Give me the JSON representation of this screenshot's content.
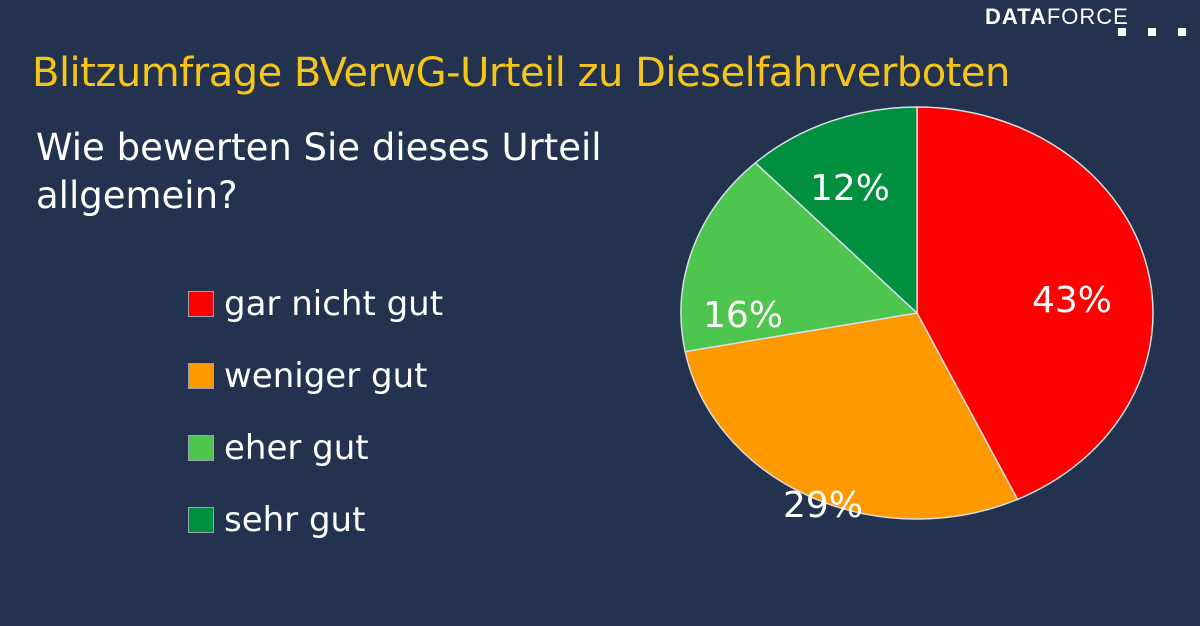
{
  "header": {
    "logo_bold": "DATA",
    "logo_light": "FORCE",
    "title": "Blitzumfrage BVerwG-Urteil zu Dieselfahrverboten",
    "question": "Wie bewerten Sie dieses Urteil allgemein?"
  },
  "colors": {
    "background": "#22324f",
    "title": "#f5c518",
    "gar_nicht_gut": "#ff0000",
    "weniger_gut": "#ff9900",
    "eher_gut": "#4ec54e",
    "sehr_gut": "#009040"
  },
  "legend": [
    {
      "label": "gar nicht gut",
      "color": "#ff0000"
    },
    {
      "label": "weniger gut",
      "color": "#ff9900"
    },
    {
      "label": "eher gut",
      "color": "#4ec54e"
    },
    {
      "label": "sehr gut",
      "color": "#009040"
    }
  ],
  "slices": [
    {
      "label": "gar nicht gut",
      "value_label": "43%"
    },
    {
      "label": "weniger gut",
      "value_label": "29%"
    },
    {
      "label": "eher gut",
      "value_label": "16%"
    },
    {
      "label": "sehr gut",
      "value_label": "12%"
    }
  ],
  "chart_data": {
    "type": "pie",
    "title": "Blitzumfrage BVerwG-Urteil zu Dieselfahrverboten",
    "subtitle": "Wie bewerten Sie dieses Urteil allgemein?",
    "categories": [
      "gar nicht gut",
      "weniger gut",
      "eher gut",
      "sehr gut"
    ],
    "values": [
      43,
      29,
      16,
      12
    ],
    "unit": "%",
    "colors": [
      "#ff0000",
      "#ff9900",
      "#4ec54e",
      "#009040"
    ],
    "legend_position": "left",
    "start_angle": "12 o'clock, clockwise"
  }
}
